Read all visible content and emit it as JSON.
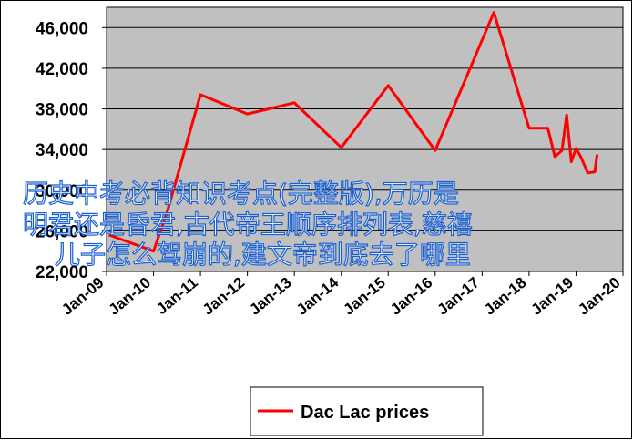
{
  "chart_data": {
    "type": "line",
    "x": [
      2009.05,
      2010.0,
      2010.3,
      2011.0,
      2012.0,
      2013.0,
      2014.0,
      2015.0,
      2016.0,
      2017.25,
      2018.0,
      2018.4,
      2018.55,
      2018.7,
      2018.8,
      2018.9,
      2019.0,
      2019.1,
      2019.25,
      2019.4,
      2019.45
    ],
    "series": [
      {
        "name": "Dac Lac prices",
        "color": "#ff0000",
        "values": [
          25600,
          24000,
          28000,
          39400,
          37500,
          38600,
          34200,
          40300,
          33900,
          47500,
          36100,
          36100,
          33300,
          33900,
          37400,
          32800,
          34100,
          33300,
          31700,
          31800,
          33500
        ]
      }
    ],
    "xlim": [
      2009,
      2020
    ],
    "xticks": [
      {
        "value": 2009,
        "label": "Jan-09"
      },
      {
        "value": 2010,
        "label": "Jan-10"
      },
      {
        "value": 2011,
        "label": "Jan-11"
      },
      {
        "value": 2012,
        "label": "Jan-12"
      },
      {
        "value": 2013,
        "label": "Jan-13"
      },
      {
        "value": 2014,
        "label": "Jan-14"
      },
      {
        "value": 2015,
        "label": "Jan-15"
      },
      {
        "value": 2016,
        "label": "Jan-16"
      },
      {
        "value": 2017,
        "label": "Jan-17"
      },
      {
        "value": 2018,
        "label": "Jan-18"
      },
      {
        "value": 2019,
        "label": "Jan-19"
      },
      {
        "value": 2020,
        "label": "Jan-20"
      }
    ],
    "ylim": [
      22000,
      48000
    ],
    "yticks": [
      {
        "value": 22000,
        "label": "22,000"
      },
      {
        "value": 26000,
        "label": "26,000"
      },
      {
        "value": 30000,
        "label": "30,000"
      },
      {
        "value": 34000,
        "label": "34,000"
      },
      {
        "value": 38000,
        "label": "38,000"
      },
      {
        "value": 42000,
        "label": "42,000"
      },
      {
        "value": 46000,
        "label": "46,000"
      }
    ],
    "grid": true,
    "legend": "bottom"
  },
  "overlay_text": [
    "历史中考必背知识考点(完整版),万历是",
    "明君还是昏君,古代帝王顺序排列表,慈禧",
    "儿子怎么驾崩的,建文帝到底去了哪里"
  ]
}
